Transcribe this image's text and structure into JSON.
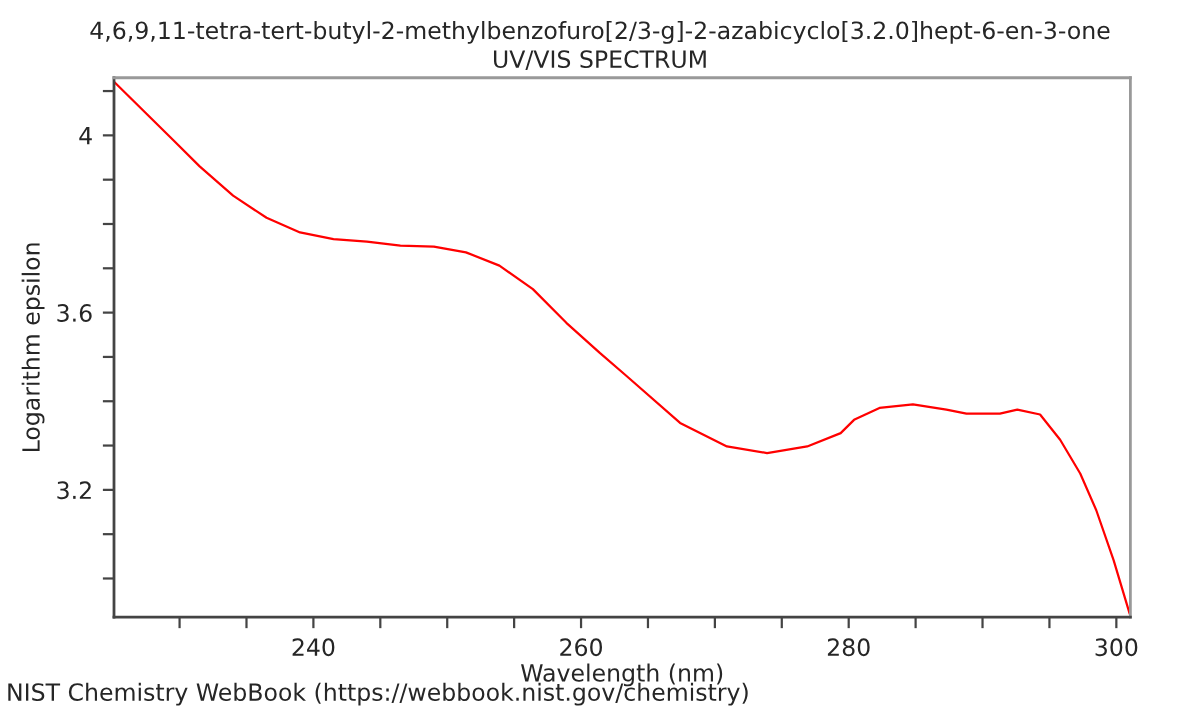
{
  "chart_data": {
    "type": "line",
    "title": "4,6,9,11-tetra-tert-butyl-2-methylbenzofuro[2/3-g]-2-azabicyclo[3.2.0]hept-6-en-3-one",
    "subtitle": "UV/VIS SPECTRUM",
    "xlabel": "Wavelength (nm)",
    "ylabel": "Logarithm epsilon",
    "annotations": [
      "NIST Chemistry WebBook (https://webbook.nist.gov/chemistry)"
    ],
    "xlim": [
      225.1,
      301.05
    ],
    "ylim": [
      2.913,
      4.13
    ],
    "xticks": [
      {
        "value": 230,
        "label": null
      },
      {
        "value": 235,
        "label": null
      },
      240,
      {
        "value": 245,
        "label": null
      },
      {
        "value": 250,
        "label": null
      },
      {
        "value": 255,
        "label": null
      },
      260,
      {
        "value": 265,
        "label": null
      },
      {
        "value": 270,
        "label": null
      },
      {
        "value": 275,
        "label": null
      },
      280,
      {
        "value": 285,
        "label": null
      },
      {
        "value": 290,
        "label": null
      },
      {
        "value": 295,
        "label": null
      },
      300
    ],
    "yticks": [
      {
        "value": 3.0,
        "label": null
      },
      {
        "value": 3.1,
        "label": null
      },
      3.2,
      {
        "value": 3.3,
        "label": null
      },
      {
        "value": 3.4,
        "label": null
      },
      {
        "value": 3.5,
        "label": null
      },
      3.6,
      {
        "value": 3.7,
        "label": null
      },
      {
        "value": 3.8,
        "label": null
      },
      {
        "value": 3.9,
        "label": null
      },
      4,
      {
        "value": 4.1,
        "label": null
      }
    ],
    "grid": false,
    "legend": false,
    "marker": "none",
    "line_style": "solid",
    "series": [
      {
        "color": "#ff0000",
        "x": [
          225.14,
          229.5,
          231.5,
          234.0,
          236.5,
          239.0,
          241.5,
          244.0,
          246.5,
          249.0,
          251.4,
          253.9,
          256.4,
          258.9,
          261.4,
          263.4,
          267.4,
          270.9,
          273.9,
          276.9,
          279.4,
          280.4,
          282.3,
          284.8,
          287.3,
          288.8,
          291.3,
          292.6,
          294.3,
          295.8,
          297.3,
          298.5,
          299.8,
          301.0
        ],
        "values": [
          4.12,
          3.99,
          3.93,
          3.864,
          3.814,
          3.781,
          3.766,
          3.76,
          3.751,
          3.749,
          3.736,
          3.706,
          3.653,
          3.577,
          3.509,
          3.457,
          3.351,
          3.298,
          3.283,
          3.298,
          3.328,
          3.358,
          3.385,
          3.393,
          3.381,
          3.372,
          3.372,
          3.381,
          3.37,
          3.313,
          3.237,
          3.154,
          3.041,
          2.92
        ]
      }
    ]
  }
}
